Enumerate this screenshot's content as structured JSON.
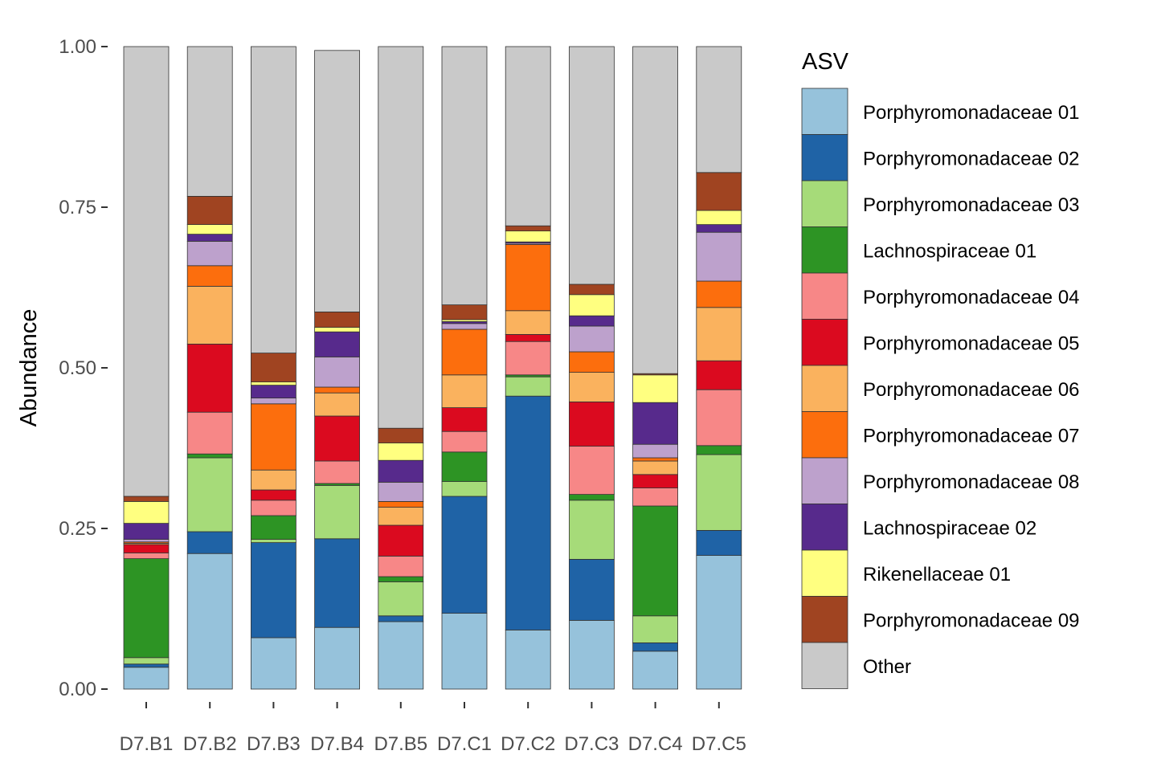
{
  "chart_data": {
    "type": "bar",
    "stacked": true,
    "title": "",
    "xlabel": "",
    "ylabel": "Abundance",
    "ylim": [
      0,
      1
    ],
    "yticks": [
      "0.00",
      "0.25",
      "0.50",
      "0.75",
      "1.00"
    ],
    "grid": false,
    "legend_position": "right",
    "legend_title": "ASV",
    "categories": [
      "D7.B1",
      "D7.B2",
      "D7.B3",
      "D7.B4",
      "D7.B5",
      "D7.C1",
      "D7.C2",
      "D7.C3",
      "D7.C4",
      "D7.C5"
    ],
    "series": [
      {
        "name": "Porphyromonadaceae 01",
        "color": "#96C2DB",
        "values": [
          0.034,
          0.211,
          0.08,
          0.096,
          0.105,
          0.118,
          0.092,
          0.107,
          0.059,
          0.208
        ]
      },
      {
        "name": "Porphyromonadaceae 02",
        "color": "#1F63A6",
        "values": [
          0.005,
          0.034,
          0.148,
          0.138,
          0.009,
          0.182,
          0.364,
          0.095,
          0.013,
          0.039
        ]
      },
      {
        "name": "Porphyromonadaceae 03",
        "color": "#A6DB79",
        "values": [
          0.01,
          0.115,
          0.005,
          0.083,
          0.053,
          0.023,
          0.03,
          0.092,
          0.042,
          0.118
        ]
      },
      {
        "name": "Lachnospiraceae 01",
        "color": "#2D9424",
        "values": [
          0.154,
          0.006,
          0.037,
          0.003,
          0.008,
          0.046,
          0.003,
          0.009,
          0.171,
          0.014
        ]
      },
      {
        "name": "Porphyromonadaceae 04",
        "color": "#F78787",
        "values": [
          0.009,
          0.065,
          0.024,
          0.035,
          0.032,
          0.032,
          0.052,
          0.075,
          0.028,
          0.087
        ]
      },
      {
        "name": "Porphyromonadaceae 05",
        "color": "#DB0A1F",
        "values": [
          0.013,
          0.106,
          0.016,
          0.07,
          0.048,
          0.037,
          0.011,
          0.069,
          0.021,
          0.045
        ]
      },
      {
        "name": "Porphyromonadaceae 06",
        "color": "#FAB25E",
        "values": [
          0.002,
          0.09,
          0.031,
          0.036,
          0.028,
          0.051,
          0.037,
          0.046,
          0.021,
          0.083
        ]
      },
      {
        "name": "Porphyromonadaceae 07",
        "color": "#FC6E0D",
        "values": [
          0.002,
          0.032,
          0.103,
          0.009,
          0.009,
          0.071,
          0.103,
          0.032,
          0.005,
          0.041
        ]
      },
      {
        "name": "Porphyromonadaceae 08",
        "color": "#BDA1CC",
        "values": [
          0.004,
          0.038,
          0.009,
          0.047,
          0.03,
          0.009,
          0.002,
          0.04,
          0.021,
          0.076
        ]
      },
      {
        "name": "Lachnospiraceae 02",
        "color": "#572A8C",
        "values": [
          0.025,
          0.011,
          0.02,
          0.039,
          0.034,
          0.003,
          0.002,
          0.016,
          0.065,
          0.012
        ]
      },
      {
        "name": "Rikenellaceae 01",
        "color": "#FFFF80",
        "values": [
          0.034,
          0.015,
          0.005,
          0.007,
          0.027,
          0.003,
          0.017,
          0.033,
          0.043,
          0.022
        ]
      },
      {
        "name": "Porphyromonadaceae 09",
        "color": "#A04421",
        "values": [
          0.008,
          0.044,
          0.045,
          0.024,
          0.023,
          0.023,
          0.008,
          0.016,
          0.002,
          0.059
        ]
      },
      {
        "name": "Other",
        "color": "#C9C9C9",
        "values": [
          0.7,
          0.233,
          0.477,
          0.407,
          0.594,
          0.402,
          0.279,
          0.37,
          0.509,
          0.196
        ]
      }
    ]
  }
}
